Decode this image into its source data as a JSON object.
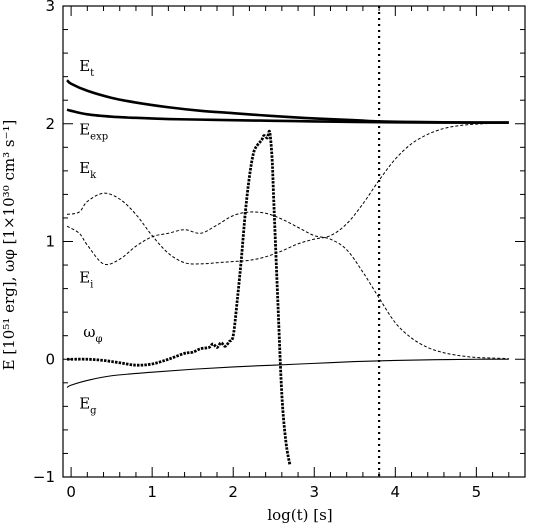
{
  "chart_data": {
    "type": "line",
    "xlabel": "log(t)  [s]",
    "ylabel": "E [10⁵¹ erg],  ωφ  [1×10³⁰ cm³ s⁻¹]",
    "xlim": [
      -0.1,
      5.6
    ],
    "ylim": [
      -1,
      3
    ],
    "xticks": [
      0,
      1,
      2,
      3,
      4,
      5
    ],
    "yticks": [
      -1,
      0,
      1,
      2,
      3
    ],
    "x_tick_labels": [
      "0",
      "1",
      "2",
      "3",
      "4",
      "5"
    ],
    "y_tick_labels": [
      "−1",
      "0",
      "1",
      "2",
      "3"
    ],
    "grid": false,
    "vertical_marker": {
      "x": 3.8,
      "style": "dotted"
    },
    "series": [
      {
        "name": "Et",
        "label_base": "E",
        "label_sub": "t",
        "label_pos": [
          0.1,
          2.45
        ],
        "style": "thick-solid",
        "x": [
          -0.05,
          0,
          0.2,
          0.5,
          0.8,
          1.2,
          1.6,
          2.0,
          2.5,
          3.0,
          3.5,
          3.8,
          4.2,
          4.6,
          5.0,
          5.4
        ],
        "y": [
          2.37,
          2.34,
          2.28,
          2.22,
          2.18,
          2.14,
          2.11,
          2.09,
          2.065,
          2.045,
          2.03,
          2.02,
          2.015,
          2.012,
          2.01,
          2.01
        ]
      },
      {
        "name": "Eexp",
        "label_base": "E",
        "label_sub": "exp",
        "label_pos": [
          0.1,
          1.91
        ],
        "style": "thick-solid",
        "x": [
          -0.05,
          0,
          0.2,
          0.5,
          0.8,
          1.2,
          1.6,
          2.0,
          2.5,
          3.0,
          3.5,
          4.0,
          4.5,
          5.0,
          5.4
        ],
        "y": [
          2.12,
          2.11,
          2.08,
          2.06,
          2.05,
          2.04,
          2.035,
          2.03,
          2.025,
          2.02,
          2.015,
          2.012,
          2.01,
          2.01,
          2.01
        ]
      },
      {
        "name": "Ek",
        "label_base": "E",
        "label_sub": "k",
        "label_pos": [
          0.1,
          1.58
        ],
        "style": "dashed",
        "x": [
          -0.05,
          0.1,
          0.2,
          0.4,
          0.6,
          0.8,
          1.0,
          1.2,
          1.4,
          1.6,
          1.8,
          2.0,
          2.2,
          2.4,
          2.6,
          2.8,
          3.0,
          3.2,
          3.4,
          3.6,
          3.8,
          4.0,
          4.2,
          4.4,
          4.6,
          4.8,
          5.0,
          5.2,
          5.4
        ],
        "y": [
          1.23,
          1.25,
          1.34,
          1.41,
          1.36,
          1.23,
          1.05,
          0.9,
          0.82,
          0.81,
          0.82,
          0.83,
          0.84,
          0.87,
          0.92,
          0.98,
          1.02,
          1.05,
          1.15,
          1.32,
          1.52,
          1.7,
          1.83,
          1.91,
          1.96,
          1.985,
          1.997,
          2.003,
          2.006
        ]
      },
      {
        "name": "Ei",
        "label_base": "E",
        "label_sub": "i",
        "label_pos": [
          0.1,
          0.65
        ],
        "style": "dashed",
        "x": [
          -0.05,
          0.1,
          0.2,
          0.4,
          0.6,
          0.8,
          1.0,
          1.2,
          1.4,
          1.6,
          1.8,
          2.0,
          2.2,
          2.4,
          2.6,
          2.8,
          3.0,
          3.2,
          3.4,
          3.6,
          3.8,
          4.0,
          4.2,
          4.4,
          4.6,
          4.8,
          5.0,
          5.2,
          5.4
        ],
        "y": [
          1.13,
          1.07,
          0.97,
          0.81,
          0.85,
          0.96,
          1.04,
          1.07,
          1.1,
          1.07,
          1.14,
          1.22,
          1.25,
          1.24,
          1.19,
          1.12,
          1.05,
          1.02,
          0.93,
          0.74,
          0.52,
          0.31,
          0.18,
          0.1,
          0.055,
          0.03,
          0.015,
          0.01,
          0.005
        ]
      },
      {
        "name": "ωφ",
        "label_base": "ω",
        "label_sub": "φ",
        "label_pos": [
          0.15,
          0.19
        ],
        "style": "thick-dotted",
        "x": [
          -0.05,
          0,
          0.2,
          0.4,
          0.6,
          0.8,
          1.0,
          1.2,
          1.4,
          1.5,
          1.6,
          1.7,
          1.75,
          1.8,
          1.85,
          1.9,
          1.95,
          2.0,
          2.05,
          2.1,
          2.15,
          2.2,
          2.25,
          2.3,
          2.35,
          2.38,
          2.42,
          2.45,
          2.48,
          2.5,
          2.55,
          2.6,
          2.65,
          2.7
        ],
        "y": [
          0.0,
          0.0,
          0.0,
          -0.01,
          -0.03,
          -0.05,
          -0.04,
          0.0,
          0.05,
          0.06,
          0.09,
          0.1,
          0.13,
          0.1,
          0.14,
          0.11,
          0.15,
          0.2,
          0.5,
          0.85,
          1.25,
          1.55,
          1.75,
          1.82,
          1.86,
          1.9,
          1.88,
          1.93,
          1.7,
          1.35,
          0.5,
          -0.3,
          -0.7,
          -0.9
        ]
      },
      {
        "name": "Eg",
        "label_base": "E",
        "label_sub": "g",
        "label_pos": [
          0.1,
          -0.42
        ],
        "style": "thin-solid",
        "x": [
          -0.05,
          0,
          0.2,
          0.5,
          1.0,
          1.5,
          2.0,
          2.5,
          3.0,
          3.5,
          4.0,
          4.5,
          5.0,
          5.4
        ],
        "y": [
          -0.24,
          -0.22,
          -0.18,
          -0.14,
          -0.11,
          -0.085,
          -0.065,
          -0.05,
          -0.035,
          -0.02,
          -0.01,
          -0.004,
          0.0,
          0.0
        ]
      }
    ]
  }
}
